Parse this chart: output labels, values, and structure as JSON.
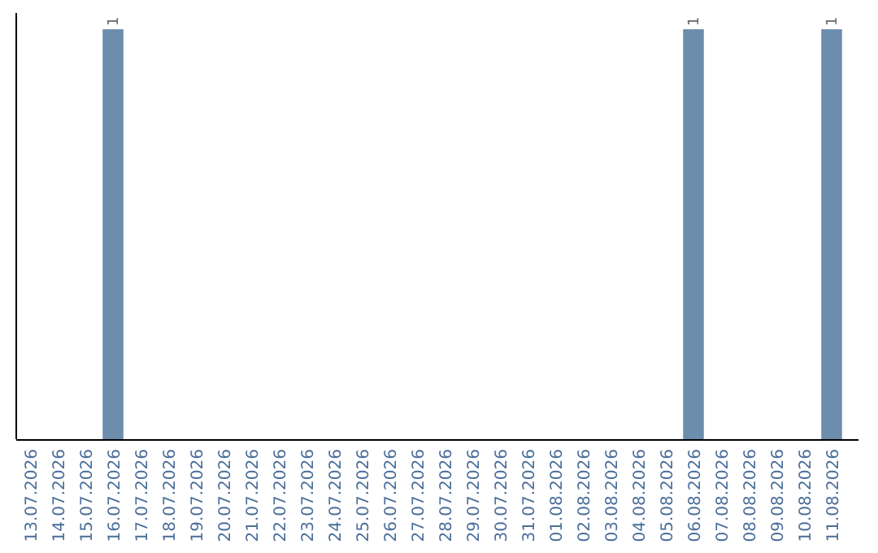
{
  "chart_data": {
    "type": "bar",
    "categories": [
      "13.07.2026",
      "14.07.2026",
      "15.07.2026",
      "16.07.2026",
      "17.07.2026",
      "18.07.2026",
      "19.07.2026",
      "20.07.2026",
      "21.07.2026",
      "22.07.2026",
      "23.07.2026",
      "24.07.2026",
      "25.07.2026",
      "26.07.2026",
      "27.07.2026",
      "28.07.2026",
      "29.07.2026",
      "30.07.2026",
      "31.07.2026",
      "01.08.2026",
      "02.08.2026",
      "03.08.2026",
      "04.08.2026",
      "05.08.2026",
      "06.08.2026",
      "07.08.2026",
      "08.08.2026",
      "09.08.2026",
      "10.08.2026",
      "11.08.2026"
    ],
    "values": [
      0,
      0,
      0,
      1,
      0,
      0,
      0,
      0,
      0,
      0,
      0,
      0,
      0,
      0,
      0,
      0,
      0,
      0,
      0,
      0,
      0,
      0,
      0,
      0,
      1,
      0,
      0,
      0,
      0,
      1
    ],
    "value_labels": [
      null,
      null,
      null,
      "1",
      null,
      null,
      null,
      null,
      null,
      null,
      null,
      null,
      null,
      null,
      null,
      null,
      null,
      null,
      null,
      null,
      null,
      null,
      null,
      null,
      "1",
      null,
      null,
      null,
      null,
      "1"
    ],
    "color": "#6c8dab"
  }
}
